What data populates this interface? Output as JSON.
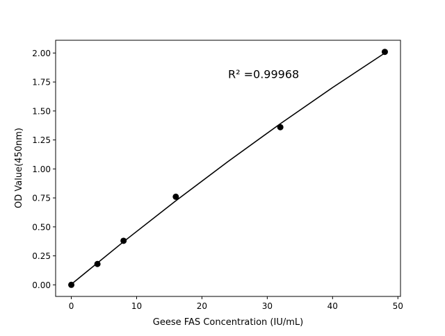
{
  "chart_data": {
    "type": "scatter",
    "title": "",
    "xlabel": "Geese FAS Concentration (IU/mL)",
    "ylabel": "OD Value(450nm)",
    "xlim": [
      -2.4,
      50.4
    ],
    "ylim": [
      -0.1,
      2.11
    ],
    "xticks": [
      0,
      10,
      20,
      30,
      40,
      50
    ],
    "xtick_labels": [
      "0",
      "10",
      "20",
      "30",
      "40",
      "50"
    ],
    "yticks": [
      0,
      0.25,
      0.5,
      0.75,
      1.0,
      1.25,
      1.5,
      1.75,
      2.0
    ],
    "ytick_labels": [
      "0.00",
      "0.25",
      "0.50",
      "0.75",
      "1.00",
      "1.25",
      "1.50",
      "1.75",
      "2.00"
    ],
    "grid": false,
    "points": {
      "x": [
        0,
        4,
        8,
        16,
        32,
        48
      ],
      "y": [
        0.0,
        0.18,
        0.38,
        0.76,
        1.36,
        2.01
      ],
      "color": "#000000"
    },
    "fit_curve": {
      "x": [
        0,
        8,
        16,
        24,
        32,
        40,
        48
      ],
      "y": [
        0.005,
        0.372,
        0.725,
        1.064,
        1.39,
        1.702,
        2.0
      ],
      "color": "#000000"
    },
    "annotation": {
      "text": "R² =0.99968",
      "x": 24,
      "y": 1.82
    }
  }
}
